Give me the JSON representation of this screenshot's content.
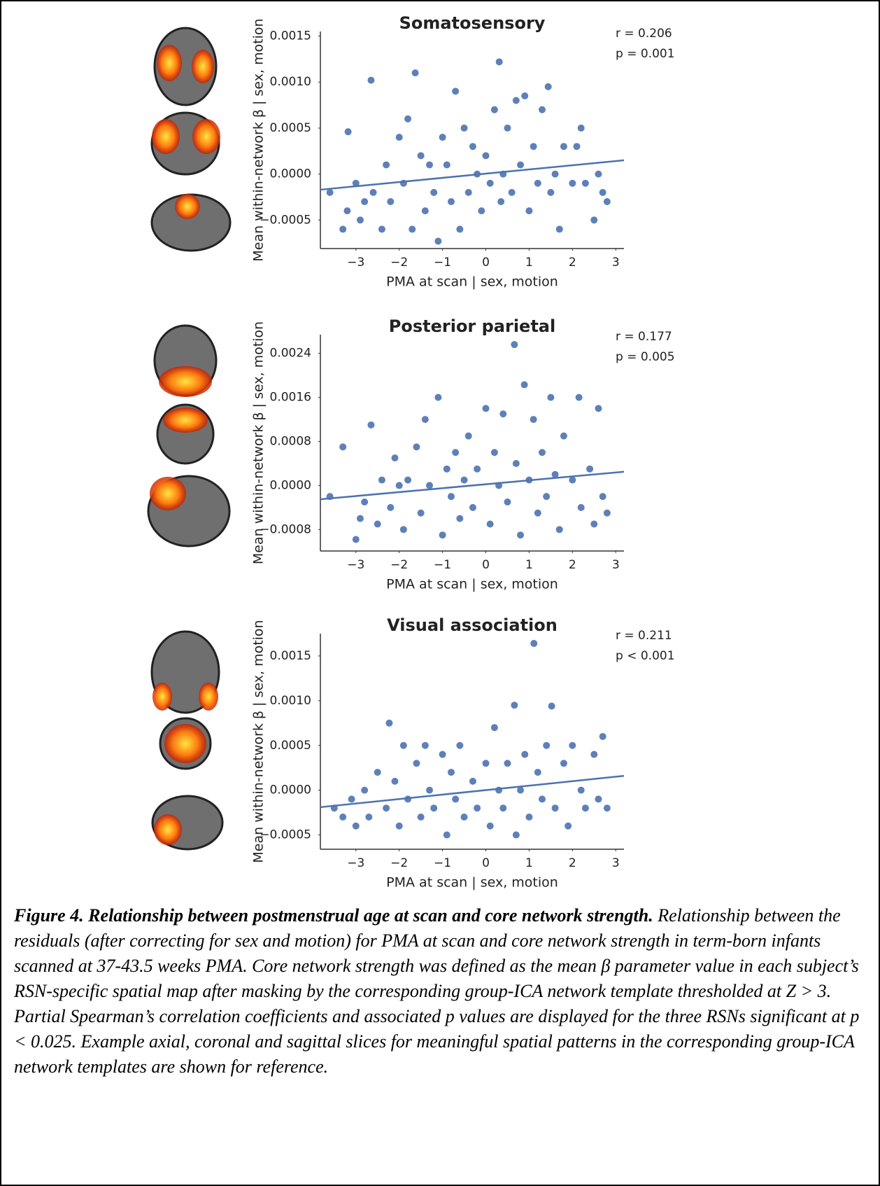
{
  "chart_data": [
    {
      "type": "scatter",
      "title": "Somatosensory",
      "x_label": "PMA at scan | sex, motion",
      "y_label": "Mean within-network β | sex, motion",
      "annotations": [
        "r = 0.206",
        "p = 0.001"
      ],
      "xlim": [
        -3.82,
        3.19
      ],
      "xticks": [
        {
          "value": -3,
          "label": "−3"
        },
        {
          "value": -2,
          "label": "−2"
        },
        {
          "value": -1,
          "label": "−1"
        },
        0,
        1,
        2,
        3
      ],
      "ylim": [
        -0.00081,
        0.00155
      ],
      "yticks": [
        {
          "value": -0.0005,
          "label": "−0.0005"
        },
        {
          "value": 0,
          "label": "0.0000"
        },
        {
          "value": 0.0005,
          "label": "0.0005"
        },
        {
          "value": 0.001,
          "label": "0.0010"
        },
        {
          "value": 0.0015,
          "label": "0.0015"
        }
      ],
      "series": [
        {
          "color": "#4c72b0",
          "x": [
            -3.6,
            -3.3,
            -3.2,
            -3.18,
            -3.0,
            -2.9,
            -2.8,
            -2.65,
            -2.6,
            -2.4,
            -2.3,
            -2.2,
            -2.0,
            -1.9,
            -1.8,
            -1.7,
            -1.63,
            -1.5,
            -1.4,
            -1.3,
            -1.2,
            -1.1,
            -1.0,
            -0.9,
            -0.8,
            -0.7,
            -0.6,
            -0.5,
            -0.4,
            -0.3,
            -0.2,
            -0.1,
            0.0,
            0.1,
            0.2,
            0.31,
            0.35,
            0.4,
            0.5,
            0.6,
            0.7,
            0.8,
            0.9,
            1.0,
            1.1,
            1.2,
            1.3,
            1.44,
            1.5,
            1.6,
            1.7,
            1.8,
            2.0,
            2.1,
            2.2,
            2.3,
            2.5,
            2.6,
            2.7,
            2.8
          ],
          "values": [
            -0.0002,
            -0.0006,
            -0.0004,
            0.00046,
            -0.0001,
            -0.0005,
            -0.0003,
            0.00102,
            -0.0002,
            -0.0006,
            0.0001,
            -0.0003,
            0.0004,
            -0.0001,
            0.0006,
            -0.0006,
            0.0011,
            0.0002,
            -0.0004,
            0.0001,
            -0.0002,
            -0.00073,
            0.0004,
            0.0001,
            -0.0003,
            0.0009,
            -0.0006,
            0.0005,
            -0.0002,
            0.0003,
            0.0,
            -0.0004,
            0.0002,
            -0.0001,
            0.0007,
            0.00122,
            -0.0003,
            0.0,
            0.0005,
            -0.0002,
            0.0008,
            0.0001,
            0.00085,
            -0.0004,
            0.0003,
            -0.0001,
            0.0007,
            0.00095,
            -0.0002,
            0.0,
            -0.0006,
            0.0003,
            -0.0001,
            0.0003,
            0.0005,
            -0.0001,
            -0.0005,
            0.0,
            -0.0002,
            -0.0003
          ]
        }
      ],
      "trend": {
        "color": "#4c72b0",
        "x": [
          -3.82,
          3.19
        ],
        "values": [
          -0.00017,
          0.00015
        ]
      }
    },
    {
      "type": "scatter",
      "title": "Posterior parietal",
      "x_label": "PMA at scan | sex, motion",
      "y_label": "Mean within-network β | sex, motion",
      "annotations": [
        "r = 0.177",
        "p = 0.005"
      ],
      "xlim": [
        -3.82,
        3.19
      ],
      "xticks": [
        {
          "value": -3,
          "label": "−3"
        },
        {
          "value": -2,
          "label": "−2"
        },
        {
          "value": -1,
          "label": "−1"
        },
        0,
        1,
        2,
        3
      ],
      "ylim": [
        -0.00119,
        0.00274
      ],
      "yticks": [
        {
          "value": -0.0008,
          "label": "−0.0008"
        },
        {
          "value": 0,
          "label": "0.0000"
        },
        0.0008,
        0.0016,
        0.0024
      ],
      "series": [
        {
          "color": "#4c72b0",
          "x": [
            -3.6,
            -3.3,
            -3.0,
            -2.9,
            -2.8,
            -2.65,
            -2.5,
            -2.4,
            -2.2,
            -2.1,
            -2.0,
            -1.9,
            -1.8,
            -1.6,
            -1.5,
            -1.4,
            -1.3,
            -1.1,
            -1.0,
            -0.9,
            -0.8,
            -0.7,
            -0.6,
            -0.5,
            -0.4,
            -0.3,
            -0.2,
            0.0,
            0.1,
            0.2,
            0.3,
            0.4,
            0.5,
            0.66,
            0.7,
            0.8,
            0.89,
            1.0,
            1.1,
            1.2,
            1.3,
            1.4,
            1.5,
            1.6,
            1.7,
            1.8,
            2.0,
            2.15,
            2.2,
            2.4,
            2.5,
            2.6,
            2.7,
            2.8
          ],
          "values": [
            -0.0002,
            0.0007,
            -0.00098,
            -0.0006,
            -0.0003,
            0.0011,
            -0.0007,
            0.0001,
            -0.0004,
            0.0005,
            0.0,
            -0.0008,
            0.0001,
            0.0007,
            -0.0005,
            0.0012,
            0.0,
            0.0016,
            -0.0009,
            0.0003,
            -0.0002,
            0.0006,
            -0.0006,
            0.0001,
            0.0009,
            -0.0004,
            0.0003,
            0.0014,
            -0.0007,
            0.0006,
            0.0,
            0.0013,
            -0.0003,
            0.00256,
            0.0004,
            -0.0009,
            0.00183,
            0.0001,
            0.0012,
            -0.0005,
            0.0006,
            -0.0002,
            0.0016,
            0.0002,
            -0.0008,
            0.0009,
            0.0001,
            0.0016,
            -0.0004,
            0.0003,
            -0.0007,
            0.0014,
            -0.0002,
            -0.0005
          ]
        }
      ],
      "trend": {
        "color": "#4c72b0",
        "x": [
          -3.82,
          3.19
        ],
        "values": [
          -0.00025,
          0.00025
        ]
      }
    },
    {
      "type": "scatter",
      "title": "Visual association",
      "x_label": "PMA at scan | sex, motion",
      "y_label": "Mean within-network β | sex, motion",
      "annotations": [
        "r = 0.211",
        "p < 0.001"
      ],
      "xlim": [
        -3.82,
        3.19
      ],
      "xticks": [
        {
          "value": -3,
          "label": "−3"
        },
        {
          "value": -2,
          "label": "−2"
        },
        {
          "value": -1,
          "label": "−1"
        },
        0,
        1,
        2,
        3
      ],
      "ylim": [
        -0.00066,
        0.00175
      ],
      "yticks": [
        {
          "value": -0.0005,
          "label": "−0.0005"
        },
        {
          "value": 0,
          "label": "0.0000"
        },
        {
          "value": 0.0005,
          "label": "0.0005"
        },
        {
          "value": 0.001,
          "label": "0.0010"
        },
        {
          "value": 0.0015,
          "label": "0.0015"
        }
      ],
      "series": [
        {
          "color": "#4c72b0",
          "x": [
            -3.5,
            -3.3,
            -3.1,
            -3.0,
            -2.8,
            -2.7,
            -2.5,
            -2.3,
            -2.23,
            -2.1,
            -2.0,
            -1.9,
            -1.8,
            -1.6,
            -1.5,
            -1.4,
            -1.3,
            -1.2,
            -1.0,
            -0.9,
            -0.8,
            -0.7,
            -0.6,
            -0.5,
            -0.3,
            -0.2,
            0.0,
            0.1,
            0.2,
            0.3,
            0.4,
            0.5,
            0.66,
            0.7,
            0.8,
            0.9,
            1.0,
            1.11,
            1.2,
            1.3,
            1.4,
            1.52,
            1.6,
            1.8,
            1.9,
            2.0,
            2.2,
            2.3,
            2.5,
            2.6,
            2.7,
            2.8
          ],
          "values": [
            -0.0002,
            -0.0003,
            -0.0001,
            -0.0004,
            0.0,
            -0.0003,
            0.0002,
            -0.0002,
            0.00075,
            0.0001,
            -0.0004,
            0.0005,
            -0.0001,
            0.0003,
            -0.0003,
            0.0005,
            0.0,
            -0.0002,
            0.0004,
            -0.0005,
            0.0002,
            -0.0001,
            0.0005,
            -0.0003,
            0.0001,
            -0.0002,
            0.0003,
            -0.0004,
            0.0007,
            0.0,
            -0.0002,
            0.0003,
            0.00095,
            -0.0005,
            0.0,
            0.0004,
            -0.0003,
            0.00164,
            0.0002,
            -0.0001,
            0.0005,
            0.00094,
            -0.0002,
            0.0003,
            -0.0004,
            0.0005,
            0.0,
            -0.0002,
            0.0004,
            -0.0001,
            0.0006,
            -0.0002
          ]
        }
      ],
      "trend": {
        "color": "#4c72b0",
        "x": [
          -3.82,
          3.19
        ],
        "values": [
          -0.00019,
          0.00016
        ]
      }
    }
  ],
  "caption": {
    "title": "Figure 4. Relationship between postmenstrual age at scan and core network strength.",
    "text": "Relationship between the residuals (after correcting for sex and motion) for PMA at scan and core network strength in term-born infants scanned at 37-43.5 weeks PMA. Core network strength was defined as the mean β parameter value in each subject’s RSN-specific spatial map after masking by the corresponding group-ICA network template thresholded at Z > 3. Partial Spearman’s correlation coefficients and associated p values are displayed for the three RSNs significant at p < 0.025. Example axial, coronal and sagittal slices for meaningful spatial patterns in the corresponding group-ICA network templates are shown for reference."
  }
}
